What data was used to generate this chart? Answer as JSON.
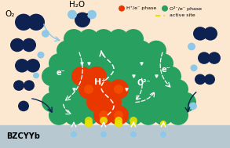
{
  "bg_color": "#fce8d0",
  "electrolyte_color": "#b8c8d0",
  "electrolyte_label": "BZCYYb",
  "o2_label": "O₂",
  "h2o_label": "H₂O",
  "h_plus_label": "H⁺",
  "e_minus_label": "e⁻",
  "o2minus_label": "O²⁻",
  "dark_blue": "#0d2250",
  "light_blue": "#8ec8e8",
  "green_phase": "#28a060",
  "orange_phase": "#e83800",
  "yellow_site": "#e8e000",
  "white": "#ffffff",
  "legend_orange_label": "H⁺/e⁻ phase",
  "legend_green_label": "O²⁻/e⁻ phase",
  "legend_site_label": "active site",
  "legend_orange_color": "#e83800",
  "legend_green_color": "#28a060",
  "legend_site_color": "#e8e000"
}
